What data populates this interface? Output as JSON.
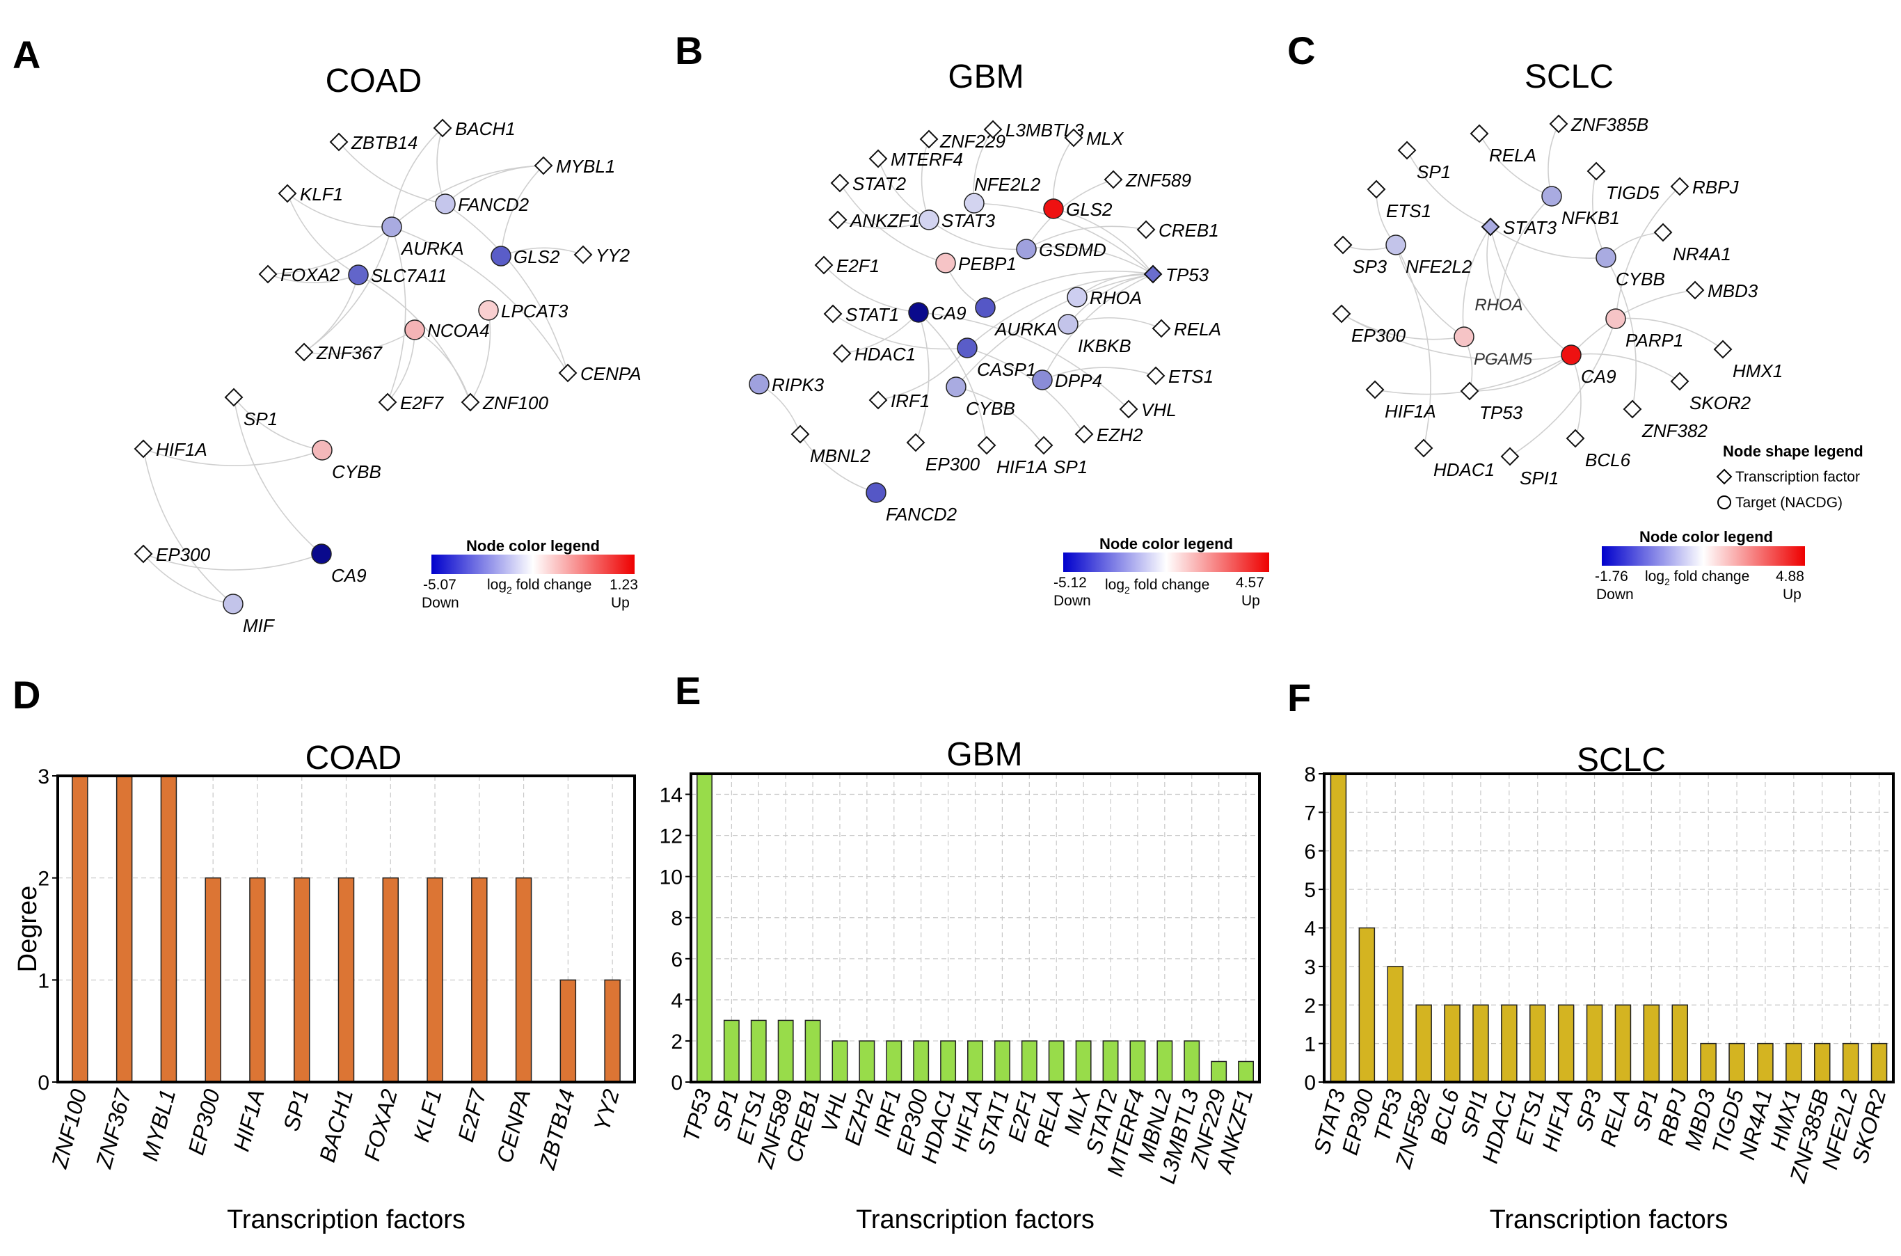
{
  "panel_labels": {
    "a": "A",
    "b": "B",
    "c": "C",
    "d": "D",
    "e": "E",
    "f": "F"
  },
  "networks": {
    "coad": {
      "title": "COAD",
      "legend": {
        "title": "Node color legend",
        "min": "-5.07",
        "max": "1.23",
        "low": "Down",
        "high": "Up",
        "mid_prefix": "log",
        "mid_sub": "2",
        "mid_suffix": " fold change"
      },
      "nodes": [
        {
          "id": "ZBTB14",
          "shape": "diamond",
          "color": "#ffffff"
        },
        {
          "id": "BACH1",
          "shape": "diamond",
          "color": "#ffffff"
        },
        {
          "id": "MYBL1",
          "shape": "diamond",
          "color": "#ffffff"
        },
        {
          "id": "KLF1",
          "shape": "diamond",
          "color": "#ffffff"
        },
        {
          "id": "FANCD2",
          "shape": "circle",
          "color": "#c5c6ec"
        },
        {
          "id": "AURKA",
          "shape": "circle",
          "color": "#a9abe1"
        },
        {
          "id": "GLS2",
          "shape": "circle",
          "color": "#5a5dc8"
        },
        {
          "id": "YY2",
          "shape": "diamond",
          "color": "#ffffff"
        },
        {
          "id": "FOXA2",
          "shape": "diamond",
          "color": "#ffffff"
        },
        {
          "id": "SLC7A11",
          "shape": "circle",
          "color": "#6265ca"
        },
        {
          "id": "LPCAT3",
          "shape": "circle",
          "color": "#f9cfd0"
        },
        {
          "id": "NCOA4",
          "shape": "circle",
          "color": "#f4b4b6"
        },
        {
          "id": "ZNF367",
          "shape": "diamond",
          "color": "#ffffff"
        },
        {
          "id": "E2F7",
          "shape": "diamond",
          "color": "#ffffff"
        },
        {
          "id": "ZNF100",
          "shape": "diamond",
          "color": "#ffffff"
        },
        {
          "id": "CENPA",
          "shape": "diamond",
          "color": "#ffffff"
        },
        {
          "id": "SP1",
          "shape": "diamond",
          "color": "#ffffff"
        },
        {
          "id": "HIF1A",
          "shape": "diamond",
          "color": "#ffffff"
        },
        {
          "id": "CYBB",
          "shape": "circle",
          "color": "#f4b8ba"
        },
        {
          "id": "EP300",
          "shape": "diamond",
          "color": "#ffffff"
        },
        {
          "id": "CA9",
          "shape": "circle",
          "color": "#0a0a8c"
        },
        {
          "id": "MIF",
          "shape": "circle",
          "color": "#c3c4ea"
        }
      ]
    },
    "gbm": {
      "title": "GBM",
      "legend": {
        "title": "Node color legend",
        "min": "-5.12",
        "max": "4.57",
        "low": "Down",
        "high": "Up",
        "mid_prefix": "log",
        "mid_sub": "2",
        "mid_suffix": " fold change"
      },
      "nodes": [
        {
          "id": "ZNF229",
          "shape": "diamond",
          "color": "#ffffff"
        },
        {
          "id": "L3MBTL3",
          "shape": "diamond",
          "color": "#ffffff"
        },
        {
          "id": "MLX",
          "shape": "diamond",
          "color": "#ffffff"
        },
        {
          "id": "MTERF4",
          "shape": "diamond",
          "color": "#ffffff"
        },
        {
          "id": "NFE2L2",
          "shape": "circle",
          "color": "#d3d4f0"
        },
        {
          "id": "ZNF589",
          "shape": "diamond",
          "color": "#ffffff"
        },
        {
          "id": "STAT2",
          "shape": "diamond",
          "color": "#ffffff"
        },
        {
          "id": "GLS2",
          "shape": "circle",
          "color": "#ee1111"
        },
        {
          "id": "ANKZF1",
          "shape": "diamond",
          "color": "#ffffff"
        },
        {
          "id": "STAT3",
          "shape": "circle",
          "color": "#d3d4f0"
        },
        {
          "id": "CREB1",
          "shape": "diamond",
          "color": "#ffffff"
        },
        {
          "id": "GSDMD",
          "shape": "circle",
          "color": "#9fa1de"
        },
        {
          "id": "E2F1",
          "shape": "diamond",
          "color": "#ffffff"
        },
        {
          "id": "PEBP1",
          "shape": "circle",
          "color": "#f6c4c6"
        },
        {
          "id": "TP53",
          "shape": "diamond",
          "color": "#6a6dcd"
        },
        {
          "id": "RHOA",
          "shape": "circle",
          "color": "#cdcef0"
        },
        {
          "id": "STAT1",
          "shape": "diamond",
          "color": "#ffffff"
        },
        {
          "id": "CA9",
          "shape": "circle",
          "color": "#0a0a8c"
        },
        {
          "id": "AURKA",
          "shape": "circle",
          "color": "#5557c6"
        },
        {
          "id": "IKBKB",
          "shape": "circle",
          "color": "#c3c4ea"
        },
        {
          "id": "RELA",
          "shape": "diamond",
          "color": "#ffffff"
        },
        {
          "id": "HDAC1",
          "shape": "diamond",
          "color": "#ffffff"
        },
        {
          "id": "CASP1",
          "shape": "circle",
          "color": "#5a5dc8"
        },
        {
          "id": "RIPK3",
          "shape": "circle",
          "color": "#9fa1de"
        },
        {
          "id": "DPP4",
          "shape": "circle",
          "color": "#8a8cd7"
        },
        {
          "id": "ETS1",
          "shape": "diamond",
          "color": "#ffffff"
        },
        {
          "id": "IRF1",
          "shape": "diamond",
          "color": "#ffffff"
        },
        {
          "id": "CYBB",
          "shape": "circle",
          "color": "#a9abe1"
        },
        {
          "id": "VHL",
          "shape": "diamond",
          "color": "#ffffff"
        },
        {
          "id": "MBNL2",
          "shape": "diamond",
          "color": "#ffffff"
        },
        {
          "id": "EP300",
          "shape": "diamond",
          "color": "#ffffff"
        },
        {
          "id": "HIF1A",
          "shape": "diamond",
          "color": "#ffffff"
        },
        {
          "id": "SP1",
          "shape": "diamond",
          "color": "#ffffff"
        },
        {
          "id": "EZH2",
          "shape": "diamond",
          "color": "#ffffff"
        },
        {
          "id": "FANCD2",
          "shape": "circle",
          "color": "#5557c6"
        }
      ]
    },
    "sclc": {
      "title": "SCLC",
      "legend": {
        "title": "Node color legend",
        "min": "-1.76",
        "max": "4.88",
        "low": "Down",
        "high": "Up",
        "mid_prefix": "log",
        "mid_sub": "2",
        "mid_suffix": " fold change"
      },
      "shape_legend": {
        "title": "Node shape legend",
        "tf": "Transcription factor",
        "target": "Target (NACDG)"
      },
      "nodes": [
        {
          "id": "RELA",
          "shape": "diamond",
          "color": "#ffffff"
        },
        {
          "id": "ZNF385B",
          "shape": "diamond",
          "color": "#ffffff"
        },
        {
          "id": "SP1",
          "shape": "diamond",
          "color": "#ffffff"
        },
        {
          "id": "TIGD5",
          "shape": "diamond",
          "color": "#ffffff"
        },
        {
          "id": "NFKB1",
          "shape": "circle",
          "color": "#a9abe1"
        },
        {
          "id": "RBPJ",
          "shape": "diamond",
          "color": "#ffffff"
        },
        {
          "id": "ETS1",
          "shape": "diamond",
          "color": "#ffffff"
        },
        {
          "id": "STAT3",
          "shape": "diamond",
          "color": "#a9abe1"
        },
        {
          "id": "NR4A1",
          "shape": "diamond",
          "color": "#ffffff"
        },
        {
          "id": "SP3",
          "shape": "diamond",
          "color": "#ffffff"
        },
        {
          "id": "NFE2L2",
          "shape": "circle",
          "color": "#c3c4ea"
        },
        {
          "id": "CYBB",
          "shape": "circle",
          "color": "#a9abe1"
        },
        {
          "id": "MBD3",
          "shape": "diamond",
          "color": "#ffffff"
        },
        {
          "id": "RHOA",
          "shape": "none",
          "color": "#ffffff"
        },
        {
          "id": "EP300",
          "shape": "diamond",
          "color": "#ffffff"
        },
        {
          "id": "PARP1",
          "shape": "circle",
          "color": "#f6c4c6"
        },
        {
          "id": "PGAM5",
          "shape": "circle",
          "color": "#f6c4c6"
        },
        {
          "id": "HMX1",
          "shape": "diamond",
          "color": "#ffffff"
        },
        {
          "id": "CA9",
          "shape": "circle",
          "color": "#ee1111"
        },
        {
          "id": "SKOR2",
          "shape": "diamond",
          "color": "#ffffff"
        },
        {
          "id": "HIF1A",
          "shape": "diamond",
          "color": "#ffffff"
        },
        {
          "id": "TP53",
          "shape": "diamond",
          "color": "#ffffff"
        },
        {
          "id": "ZNF382",
          "shape": "diamond",
          "color": "#ffffff"
        },
        {
          "id": "HDAC1",
          "shape": "diamond",
          "color": "#ffffff"
        },
        {
          "id": "SPI1",
          "shape": "diamond",
          "color": "#ffffff"
        },
        {
          "id": "BCL6",
          "shape": "diamond",
          "color": "#ffffff"
        }
      ]
    }
  },
  "chart_data": [
    {
      "type": "bar",
      "title": "COAD",
      "xlabel": "Transcription factors",
      "ylabel": "Degree",
      "ylim": [
        0,
        3
      ],
      "yticks": [
        0,
        1,
        2,
        3
      ],
      "categories": [
        "ZNF100",
        "ZNF367",
        "MYBL1",
        "EP300",
        "HIF1A",
        "SP1",
        "BACH1",
        "FOXA2",
        "KLF1",
        "E2F7",
        "CENPA",
        "ZBTB14",
        "YY2"
      ],
      "values": [
        3,
        3,
        3,
        2,
        2,
        2,
        2,
        2,
        2,
        2,
        2,
        1,
        1
      ],
      "color": "#dc7534"
    },
    {
      "type": "bar",
      "title": "GBM",
      "xlabel": "Transcription factors",
      "ylabel": "",
      "ylim": [
        0,
        15
      ],
      "yticks": [
        0,
        2,
        4,
        6,
        8,
        10,
        12,
        14
      ],
      "categories": [
        "TP53",
        "SP1",
        "ETS1",
        "ZNF589",
        "CREB1",
        "VHL",
        "EZH2",
        "IRF1",
        "EP300",
        "HDAC1",
        "HIF1A",
        "STAT1",
        "E2F1",
        "RELA",
        "MLX",
        "STAT2",
        "MTERF4",
        "MBNL2",
        "L3MBTL3",
        "ZNF229",
        "ANKZF1"
      ],
      "values": [
        15,
        3,
        3,
        3,
        3,
        2,
        2,
        2,
        2,
        2,
        2,
        2,
        2,
        2,
        2,
        2,
        2,
        2,
        2,
        1,
        1
      ],
      "color": "#98dc4a"
    },
    {
      "type": "bar",
      "title": "SCLC",
      "xlabel": "Transcription factors",
      "ylabel": "",
      "ylim": [
        0,
        8
      ],
      "yticks": [
        0,
        1,
        2,
        3,
        4,
        5,
        6,
        7,
        8
      ],
      "categories": [
        "STAT3",
        "EP300",
        "TP53",
        "ZNF582",
        "BCL6",
        "SPI1",
        "HDAC1",
        "ETS1",
        "HIF1A",
        "SP3",
        "RELA",
        "SP1",
        "RBPJ",
        "MBD3",
        "TIGD5",
        "NR4A1",
        "HMX1",
        "ZNF385B",
        "NFE2L2",
        "SKOR2"
      ],
      "values": [
        8,
        4,
        3,
        2,
        2,
        2,
        2,
        2,
        2,
        2,
        2,
        2,
        2,
        1,
        1,
        1,
        1,
        1,
        1,
        1
      ],
      "color": "#d4b421"
    }
  ]
}
